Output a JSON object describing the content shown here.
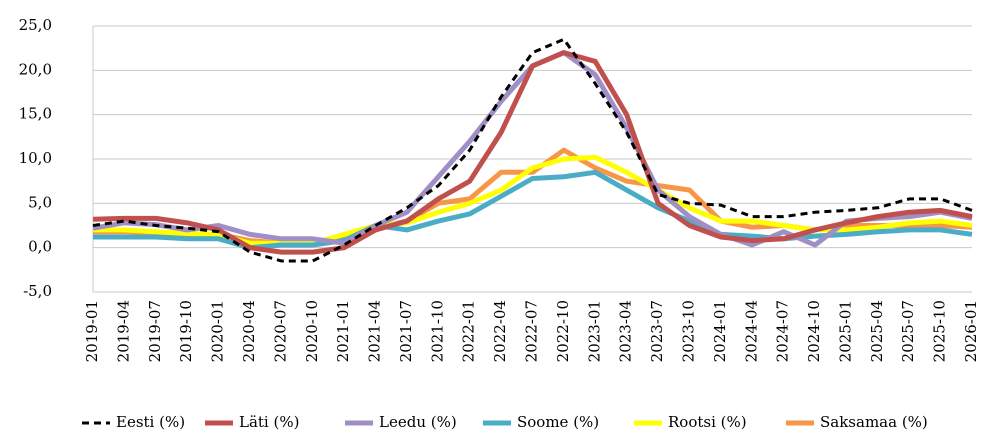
{
  "chart_data": {
    "type": "line",
    "categories": [
      "2019-01",
      "2019-04",
      "2019-07",
      "2019-10",
      "2020-01",
      "2020-04",
      "2020-07",
      "2020-10",
      "2021-01",
      "2021-04",
      "2021-07",
      "2021-10",
      "2022-01",
      "2022-04",
      "2022-07",
      "2022-10",
      "2023-01",
      "2023-04",
      "2023-07",
      "2023-10",
      "2024-01",
      "2024-04",
      "2024-07",
      "2024-10",
      "2025-01",
      "2025-04",
      "2025-07",
      "2025-10",
      "2026-01"
    ],
    "series": [
      {
        "name": "Eesti (%)",
        "color": "#000000",
        "dashed": true,
        "values": [
          2.5,
          3.0,
          2.5,
          2.2,
          1.8,
          -0.5,
          -1.5,
          -1.5,
          0.3,
          2.5,
          4.5,
          7.0,
          11.0,
          17.0,
          22.0,
          23.5,
          18.5,
          13.0,
          6.0,
          5.0,
          4.8,
          3.5,
          3.5,
          4.0,
          4.2,
          4.5,
          5.5,
          5.5,
          4.2
        ]
      },
      {
        "name": "Läti (%)",
        "color": "#c0504d",
        "values": [
          3.2,
          3.3,
          3.3,
          2.8,
          2.0,
          0.0,
          -0.5,
          -0.5,
          0.0,
          2.0,
          3.0,
          5.5,
          7.5,
          13.0,
          20.5,
          22.0,
          21.0,
          15.0,
          5.0,
          2.5,
          1.2,
          0.8,
          1.0,
          2.0,
          2.8,
          3.5,
          4.0,
          4.2,
          3.5
        ]
      },
      {
        "name": "Leedu (%)",
        "color": "#a08fc7",
        "values": [
          2.2,
          2.8,
          2.6,
          2.0,
          2.5,
          1.5,
          1.0,
          1.0,
          0.5,
          2.5,
          4.0,
          8.0,
          12.0,
          16.5,
          20.5,
          22.0,
          19.5,
          13.5,
          6.5,
          3.5,
          1.5,
          0.3,
          1.8,
          0.3,
          3.0,
          3.3,
          3.5,
          4.0,
          3.3
        ]
      },
      {
        "name": "Soome (%)",
        "color": "#4bacc6",
        "values": [
          1.2,
          1.2,
          1.2,
          1.0,
          1.0,
          0.0,
          0.3,
          0.3,
          0.8,
          2.5,
          2.0,
          3.0,
          3.8,
          5.8,
          7.8,
          8.0,
          8.5,
          6.5,
          4.5,
          3.0,
          1.5,
          1.3,
          1.0,
          1.3,
          1.5,
          1.8,
          2.0,
          2.0,
          1.5
        ]
      },
      {
        "name": "Rootsi (%)",
        "color": "#ffff00",
        "values": [
          2.0,
          2.0,
          1.8,
          1.6,
          1.5,
          0.5,
          0.5,
          0.5,
          1.5,
          2.5,
          2.8,
          4.0,
          5.0,
          6.5,
          9.0,
          10.0,
          10.2,
          8.5,
          6.5,
          4.5,
          3.0,
          3.0,
          2.5,
          2.0,
          2.0,
          2.3,
          2.8,
          3.0,
          2.5
        ]
      },
      {
        "name": "Saksamaa (%)",
        "color": "#f79646",
        "values": [
          1.8,
          1.8,
          1.7,
          1.5,
          1.5,
          0.8,
          0.5,
          0.3,
          1.0,
          2.2,
          3.0,
          5.0,
          5.5,
          8.5,
          8.5,
          11.0,
          9.0,
          7.5,
          7.0,
          6.5,
          3.0,
          2.3,
          2.5,
          2.0,
          2.5,
          2.5,
          2.5,
          2.5,
          2.3
        ]
      }
    ],
    "ylim": [
      -5,
      25
    ],
    "yticks": [
      {
        "value": 25,
        "label": "25,0"
      },
      {
        "value": 20,
        "label": "20,0"
      },
      {
        "value": 15,
        "label": "15,0"
      },
      {
        "value": 10,
        "label": "10,0"
      },
      {
        "value": 5,
        "label": "5,0"
      },
      {
        "value": 0,
        "label": "0,0"
      },
      {
        "value": -5,
        "label": "-5,0"
      }
    ],
    "grid": true,
    "legend": "bottom"
  }
}
